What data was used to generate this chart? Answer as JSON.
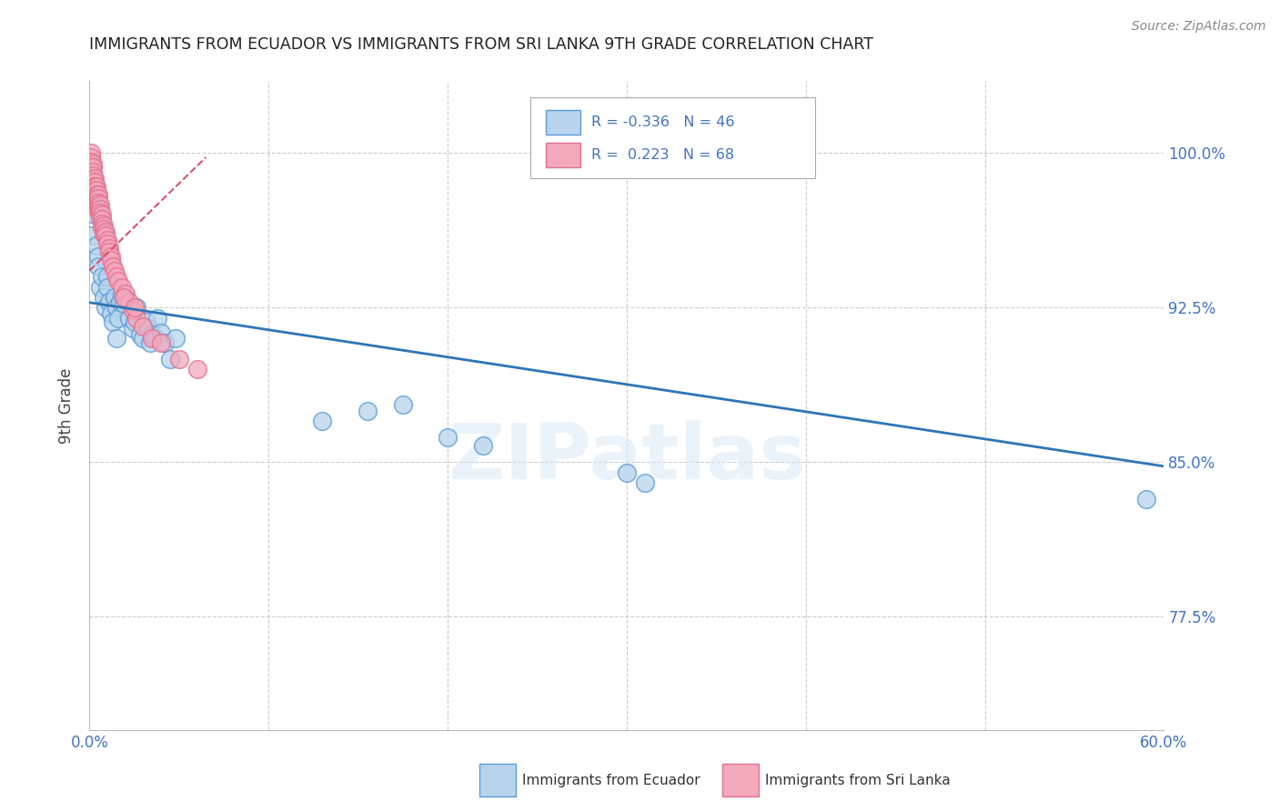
{
  "title": "IMMIGRANTS FROM ECUADOR VS IMMIGRANTS FROM SRI LANKA 9TH GRADE CORRELATION CHART",
  "source": "Source: ZipAtlas.com",
  "ylabel": "9th Grade",
  "x_min": 0.0,
  "x_max": 0.6,
  "y_min": 0.72,
  "y_max": 1.035,
  "y_ticks": [
    0.775,
    0.85,
    0.925,
    1.0
  ],
  "y_tick_labels": [
    "77.5%",
    "85.0%",
    "92.5%",
    "100.0%"
  ],
  "x_ticks": [
    0.0,
    0.1,
    0.2,
    0.3,
    0.4,
    0.5,
    0.6
  ],
  "ecuador_color": "#b8d4ed",
  "srilanka_color": "#f4a8bc",
  "ecuador_edge_color": "#5b9bd5",
  "srilanka_edge_color": "#e07090",
  "ecuador_line_color": "#2e75b6",
  "srilanka_line_color": "#d94f6e",
  "ecuador_R": -0.336,
  "ecuador_N": 46,
  "srilanka_R": 0.223,
  "srilanka_N": 68,
  "watermark": "ZIPatlas",
  "background_color": "#ffffff",
  "grid_color": "#cccccc",
  "title_color": "#222222",
  "axis_label_color": "#444444",
  "tick_color": "#4472c4",
  "ecuador_scatter_x": [
    0.002,
    0.003,
    0.004,
    0.005,
    0.005,
    0.006,
    0.007,
    0.008,
    0.009,
    0.01,
    0.01,
    0.011,
    0.012,
    0.013,
    0.014,
    0.015,
    0.015,
    0.016,
    0.017,
    0.018,
    0.019,
    0.02,
    0.022,
    0.024,
    0.025,
    0.026,
    0.028,
    0.03,
    0.032,
    0.033,
    0.034,
    0.035,
    0.037,
    0.038,
    0.04,
    0.042,
    0.045,
    0.048,
    0.13,
    0.155,
    0.175,
    0.2,
    0.22,
    0.3,
    0.31,
    0.59
  ],
  "ecuador_scatter_y": [
    0.96,
    0.97,
    0.955,
    0.95,
    0.945,
    0.935,
    0.94,
    0.93,
    0.925,
    0.94,
    0.935,
    0.928,
    0.922,
    0.918,
    0.93,
    0.925,
    0.91,
    0.92,
    0.928,
    0.932,
    0.927,
    0.93,
    0.92,
    0.915,
    0.918,
    0.925,
    0.912,
    0.91,
    0.918,
    0.915,
    0.908,
    0.912,
    0.91,
    0.92,
    0.913,
    0.908,
    0.9,
    0.91,
    0.87,
    0.875,
    0.878,
    0.862,
    0.858,
    0.845,
    0.84,
    0.832
  ],
  "srilanka_scatter_x": [
    0.001,
    0.001,
    0.001,
    0.001,
    0.001,
    0.001,
    0.001,
    0.001,
    0.002,
    0.002,
    0.002,
    0.002,
    0.002,
    0.002,
    0.002,
    0.003,
    0.003,
    0.003,
    0.003,
    0.003,
    0.003,
    0.003,
    0.004,
    0.004,
    0.004,
    0.004,
    0.004,
    0.004,
    0.005,
    0.005,
    0.005,
    0.005,
    0.005,
    0.006,
    0.006,
    0.006,
    0.006,
    0.007,
    0.007,
    0.007,
    0.007,
    0.008,
    0.008,
    0.008,
    0.009,
    0.009,
    0.01,
    0.01,
    0.011,
    0.011,
    0.012,
    0.012,
    0.013,
    0.014,
    0.015,
    0.016,
    0.018,
    0.02,
    0.022,
    0.024,
    0.026,
    0.03,
    0.035,
    0.04,
    0.05,
    0.06,
    0.019,
    0.025
  ],
  "srilanka_scatter_y": [
    1.0,
    0.998,
    0.996,
    0.994,
    0.992,
    0.99,
    0.988,
    0.986,
    0.995,
    0.993,
    0.991,
    0.989,
    0.987,
    0.985,
    0.983,
    0.988,
    0.986,
    0.984,
    0.982,
    0.98,
    0.978,
    0.976,
    0.984,
    0.982,
    0.98,
    0.978,
    0.976,
    0.974,
    0.98,
    0.978,
    0.976,
    0.974,
    0.972,
    0.975,
    0.973,
    0.971,
    0.969,
    0.97,
    0.968,
    0.966,
    0.964,
    0.965,
    0.963,
    0.961,
    0.962,
    0.96,
    0.958,
    0.956,
    0.954,
    0.952,
    0.95,
    0.948,
    0.945,
    0.943,
    0.94,
    0.938,
    0.935,
    0.932,
    0.928,
    0.924,
    0.92,
    0.916,
    0.91,
    0.908,
    0.9,
    0.895,
    0.93,
    0.925
  ],
  "ecuador_line_x0": 0.0,
  "ecuador_line_y0": 0.9275,
  "ecuador_line_x1": 0.6,
  "ecuador_line_y1": 0.848,
  "srilanka_line_x0": 0.0,
  "srilanka_line_y0": 0.943,
  "srilanka_line_x1": 0.065,
  "srilanka_line_y1": 0.998
}
